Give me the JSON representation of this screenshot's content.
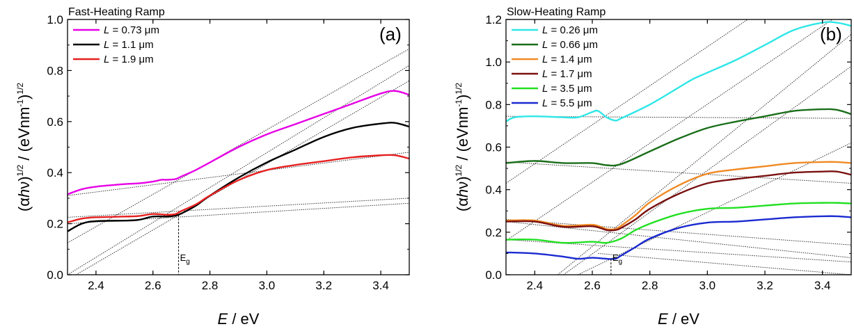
{
  "chart_data": [
    {
      "type": "line",
      "title": "Fast-Heating Ramp",
      "panel_label": "(a)",
      "xlabel": "E / eV",
      "ylabel": "(αhν)^1/2 / (eVnm^-1)^1/2",
      "xlim": [
        2.3,
        3.5
      ],
      "ylim": [
        0.0,
        1.0
      ],
      "xticks": [
        2.4,
        2.6,
        2.8,
        3.0,
        3.2,
        3.4
      ],
      "xtick_labels": [
        "2.4",
        "2.6",
        "2.8",
        "3.0",
        "3.2",
        "3.4"
      ],
      "yticks": [
        0.0,
        0.2,
        0.4,
        0.6,
        0.8,
        1.0
      ],
      "ytick_labels": [
        "0.0",
        "0.2",
        "0.4",
        "0.6",
        "0.8",
        "1.0"
      ],
      "legend_position": "top-left",
      "series": [
        {
          "name": "L = 0.73 μm",
          "L": "0.73",
          "color": "#e600e6",
          "x": [
            2.3,
            2.35,
            2.4,
            2.5,
            2.55,
            2.6,
            2.63,
            2.65,
            2.68,
            2.7,
            2.75,
            2.8,
            2.9,
            3.0,
            3.1,
            3.2,
            3.3,
            3.4,
            3.45,
            3.5
          ],
          "y": [
            0.315,
            0.335,
            0.345,
            0.355,
            0.358,
            0.365,
            0.372,
            0.372,
            0.375,
            0.385,
            0.41,
            0.44,
            0.5,
            0.55,
            0.59,
            0.63,
            0.67,
            0.71,
            0.72,
            0.705
          ]
        },
        {
          "name": "L = 1.1 μm",
          "L": "1.1",
          "color": "#000000",
          "x": [
            2.3,
            2.35,
            2.4,
            2.5,
            2.55,
            2.6,
            2.65,
            2.68,
            2.7,
            2.75,
            2.8,
            2.9,
            3.0,
            3.1,
            3.2,
            3.3,
            3.4,
            3.45,
            3.5
          ],
          "y": [
            0.17,
            0.2,
            0.21,
            0.212,
            0.215,
            0.228,
            0.228,
            0.232,
            0.24,
            0.27,
            0.31,
            0.38,
            0.44,
            0.49,
            0.54,
            0.575,
            0.592,
            0.595,
            0.58
          ]
        },
        {
          "name": "L = 1.9 μm",
          "L": "1.9",
          "color": "#e62020",
          "x": [
            2.3,
            2.35,
            2.4,
            2.5,
            2.55,
            2.6,
            2.65,
            2.68,
            2.7,
            2.75,
            2.8,
            2.9,
            3.0,
            3.1,
            3.2,
            3.3,
            3.4,
            3.45,
            3.5
          ],
          "y": [
            0.205,
            0.22,
            0.225,
            0.228,
            0.23,
            0.238,
            0.235,
            0.238,
            0.25,
            0.275,
            0.31,
            0.37,
            0.41,
            0.43,
            0.445,
            0.46,
            0.468,
            0.468,
            0.455
          ]
        }
      ],
      "fit_lines": [
        {
          "x": [
            2.3,
            3.5
          ],
          "y": [
            0.31,
            0.48
          ]
        },
        {
          "x": [
            2.3,
            3.5
          ],
          "y": [
            0.225,
            0.3
          ]
        },
        {
          "x": [
            2.3,
            3.5
          ],
          "y": [
            0.2,
            0.28
          ]
        },
        {
          "x": [
            2.3,
            3.5
          ],
          "y": [
            0.125,
            0.885
          ]
        },
        {
          "x": [
            2.3,
            3.5
          ],
          "y": [
            0.0,
            0.82
          ]
        },
        {
          "x": [
            2.33,
            3.5
          ],
          "y": [
            0.0,
            0.76
          ]
        }
      ],
      "eg_marker": {
        "label": "E",
        "subscript": "g",
        "x": 2.69,
        "y": 0.235
      }
    },
    {
      "type": "line",
      "title": "Slow-Heating Ramp",
      "panel_label": "(b)",
      "xlabel": "E / eV",
      "ylabel": "(αhν)^1/2 / (eVnm^-1)^1/2",
      "xlim": [
        2.3,
        3.5
      ],
      "ylim": [
        0.0,
        1.2
      ],
      "xticks": [
        2.4,
        2.6,
        2.8,
        3.0,
        3.2,
        3.4
      ],
      "xtick_labels": [
        "2.4",
        "2.6",
        "2.8",
        "3.0",
        "3.2",
        "3.4"
      ],
      "yticks": [
        0.0,
        0.2,
        0.4,
        0.6,
        0.8,
        1.0,
        1.2
      ],
      "ytick_labels": [
        "0.0",
        "0.2",
        "0.4",
        "0.6",
        "0.8",
        "1.0",
        "1.2"
      ],
      "legend_position": "top-left",
      "series": [
        {
          "name": "L = 0.26 μm",
          "L": "0.26",
          "color": "#2ee6e6",
          "x": [
            2.3,
            2.33,
            2.4,
            2.5,
            2.55,
            2.6,
            2.62,
            2.65,
            2.68,
            2.7,
            2.8,
            2.9,
            2.95,
            3.0,
            3.1,
            3.2,
            3.3,
            3.4,
            3.45,
            3.5
          ],
          "y": [
            0.72,
            0.74,
            0.745,
            0.74,
            0.74,
            0.765,
            0.77,
            0.74,
            0.725,
            0.735,
            0.8,
            0.88,
            0.92,
            0.95,
            1.01,
            1.08,
            1.15,
            1.185,
            1.185,
            1.17
          ]
        },
        {
          "name": "L = 0.66 μm",
          "L": "0.66",
          "color": "#1a6e1a",
          "x": [
            2.3,
            2.4,
            2.5,
            2.6,
            2.65,
            2.7,
            2.8,
            2.9,
            3.0,
            3.1,
            3.2,
            3.3,
            3.4,
            3.45,
            3.5
          ],
          "y": [
            0.525,
            0.535,
            0.525,
            0.525,
            0.515,
            0.52,
            0.58,
            0.64,
            0.69,
            0.72,
            0.745,
            0.77,
            0.778,
            0.775,
            0.755
          ]
        },
        {
          "name": "L = 1.4 μm",
          "L": "1.4",
          "color": "#f08a24",
          "x": [
            2.3,
            2.4,
            2.5,
            2.6,
            2.65,
            2.68,
            2.7,
            2.75,
            2.8,
            2.9,
            3.0,
            3.1,
            3.2,
            3.3,
            3.4,
            3.45,
            3.5
          ],
          "y": [
            0.255,
            0.255,
            0.23,
            0.235,
            0.215,
            0.215,
            0.23,
            0.28,
            0.34,
            0.42,
            0.475,
            0.495,
            0.51,
            0.525,
            0.53,
            0.53,
            0.525
          ]
        },
        {
          "name": "L = 1.7 μm",
          "L": "1.7",
          "color": "#7a1010",
          "x": [
            2.3,
            2.4,
            2.5,
            2.6,
            2.65,
            2.68,
            2.7,
            2.75,
            2.8,
            2.9,
            3.0,
            3.1,
            3.2,
            3.3,
            3.4,
            3.45,
            3.5
          ],
          "y": [
            0.25,
            0.25,
            0.225,
            0.228,
            0.21,
            0.21,
            0.22,
            0.26,
            0.31,
            0.38,
            0.43,
            0.45,
            0.465,
            0.48,
            0.485,
            0.485,
            0.47
          ]
        },
        {
          "name": "L = 3.5 μm",
          "L": "3.5",
          "color": "#22e022",
          "x": [
            2.3,
            2.4,
            2.5,
            2.6,
            2.65,
            2.7,
            2.75,
            2.8,
            2.9,
            3.0,
            3.1,
            3.2,
            3.3,
            3.4,
            3.45,
            3.5
          ],
          "y": [
            0.165,
            0.165,
            0.15,
            0.155,
            0.15,
            0.17,
            0.21,
            0.24,
            0.285,
            0.31,
            0.315,
            0.325,
            0.335,
            0.338,
            0.338,
            0.335
          ]
        },
        {
          "name": "L = 5.5 μm",
          "L": "5.5",
          "color": "#1a2ad0",
          "x": [
            2.3,
            2.4,
            2.5,
            2.55,
            2.6,
            2.65,
            2.68,
            2.7,
            2.75,
            2.8,
            2.9,
            3.0,
            3.1,
            3.2,
            3.3,
            3.4,
            3.45,
            3.5
          ],
          "y": [
            0.105,
            0.1,
            0.085,
            0.075,
            0.08,
            0.075,
            0.075,
            0.09,
            0.13,
            0.17,
            0.22,
            0.245,
            0.25,
            0.26,
            0.27,
            0.275,
            0.275,
            0.27
          ]
        }
      ],
      "fit_lines": [
        {
          "x": [
            2.3,
            3.5
          ],
          "y": [
            0.745,
            0.735
          ]
        },
        {
          "x": [
            2.3,
            3.5
          ],
          "y": [
            0.53,
            0.43
          ]
        },
        {
          "x": [
            2.3,
            3.5
          ],
          "y": [
            0.26,
            0.14
          ]
        },
        {
          "x": [
            2.3,
            3.5
          ],
          "y": [
            0.25,
            0.08
          ]
        },
        {
          "x": [
            2.3,
            3.5
          ],
          "y": [
            0.165,
            0.06
          ]
        },
        {
          "x": [
            2.62,
            3.5
          ],
          "y": [
            0.1,
            0.0
          ]
        },
        {
          "x": [
            2.3,
            3.5
          ],
          "y": [
            0.43,
            1.53
          ]
        },
        {
          "x": [
            2.3,
            3.5
          ],
          "y": [
            0.16,
            1.26
          ]
        },
        {
          "x": [
            2.48,
            3.5
          ],
          "y": [
            0.0,
            1.13
          ]
        },
        {
          "x": [
            2.5,
            3.5
          ],
          "y": [
            0.0,
            0.98
          ]
        },
        {
          "x": [
            2.55,
            3.5
          ],
          "y": [
            0.0,
            0.62
          ]
        }
      ],
      "eg_marker": {
        "label": "E",
        "subscript": "g",
        "x": 2.665,
        "y": 0.075
      }
    }
  ]
}
